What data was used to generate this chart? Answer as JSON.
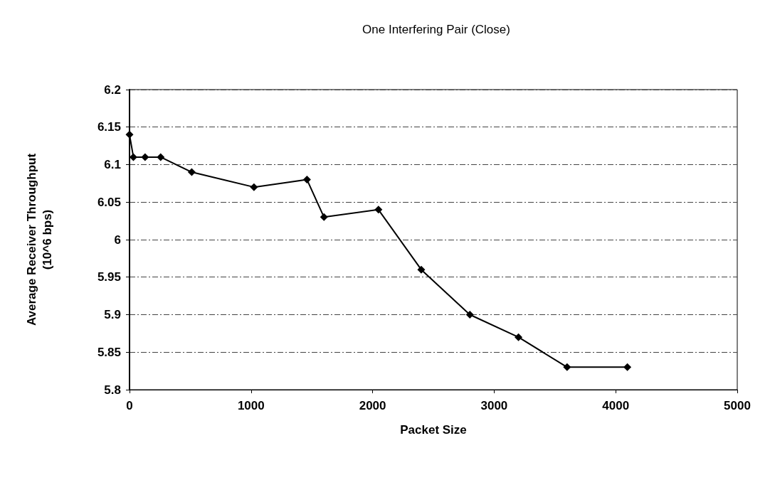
{
  "chart_data": {
    "type": "line",
    "title": "One Interfering Pair (Close)",
    "xlabel": "Packet Size",
    "ylabel": "Average Receiver Throughput\n(10^6 bps)",
    "x": [
      0,
      32,
      128,
      256,
      512,
      1024,
      1460,
      1600,
      2048,
      2400,
      2800,
      3200,
      3600,
      4096
    ],
    "series": [
      {
        "color": "#000000",
        "values": [
          6.14,
          6.11,
          6.11,
          6.11,
          6.09,
          6.07,
          6.08,
          6.03,
          6.04,
          5.96,
          5.9,
          5.87,
          5.83,
          5.83
        ]
      }
    ],
    "xlim": [
      0,
      5000
    ],
    "xticks": [
      0,
      1000,
      2000,
      3000,
      4000,
      5000
    ],
    "ylim": [
      5.8,
      6.2
    ],
    "yticks": [
      5.8,
      5.85,
      5.9,
      5.95,
      6,
      6.05,
      6.1,
      6.15,
      6.2
    ],
    "grid": "y",
    "marker": "diamond",
    "line_style": "solid"
  }
}
